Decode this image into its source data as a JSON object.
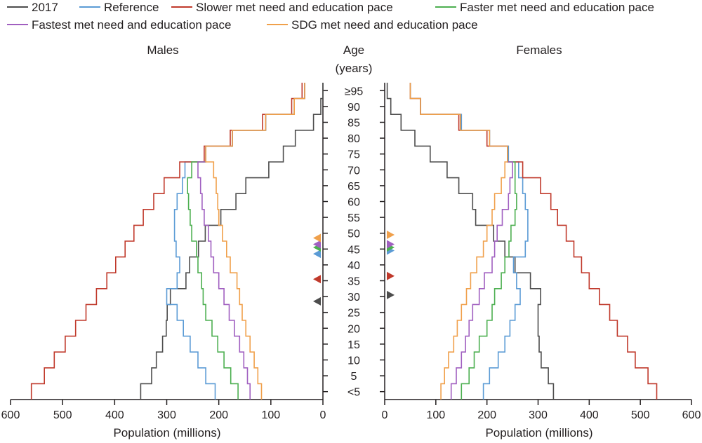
{
  "chart_data": {
    "type": "line",
    "chart_kind": "population-pyramid-step",
    "panels": [
      {
        "key": "males",
        "title": "Males",
        "direction": "left"
      },
      {
        "key": "females",
        "title": "Females",
        "direction": "right"
      }
    ],
    "center_label": [
      "Age",
      "(years)"
    ],
    "age_groups": [
      "<5",
      "5",
      "10",
      "15",
      "20",
      "25",
      "30",
      "35",
      "40",
      "45",
      "50",
      "55",
      "60",
      "65",
      "70",
      "75",
      "80",
      "85",
      "90",
      "≥95"
    ],
    "age_tick_labels": [
      "<5",
      "5",
      "10",
      "15",
      "20",
      "25",
      "30",
      "35",
      "40",
      "45",
      "50",
      "55",
      "60",
      "65",
      "70",
      "75",
      "80",
      "85",
      "90",
      "≥95"
    ],
    "x_ticks": [
      0,
      100,
      200,
      300,
      400,
      500,
      600
    ],
    "xlim": [
      0,
      600
    ],
    "xlabel": "Population (millions)",
    "grid": false,
    "legend_position": "top",
    "series": [
      {
        "name": "2017",
        "color": "#4d4d4d",
        "median_marker": {
          "males": 31,
          "females": 33
        },
        "males": [
          350,
          329,
          320,
          308,
          301,
          299,
          293,
          263,
          256,
          239,
          226,
          196,
          167,
          148,
          104,
          76,
          53,
          18,
          4,
          0
        ],
        "females": [
          330,
          320,
          306,
          302,
          300,
          300,
          305,
          285,
          255,
          235,
          213,
          178,
          172,
          145,
          122,
          89,
          59,
          32,
          12,
          5
        ]
      },
      {
        "name": "Reference",
        "color": "#5b9bd5",
        "median_marker": {
          "males": 46,
          "females": 47
        },
        "males": [
          207,
          225,
          240,
          255,
          268,
          280,
          300,
          280,
          275,
          282,
          285,
          285,
          280,
          270,
          265,
          225,
          174,
          110,
          55,
          35
        ],
        "females": [
          193,
          205,
          222,
          235,
          245,
          255,
          265,
          258,
          252,
          275,
          280,
          280,
          275,
          270,
          262,
          242,
          205,
          150,
          70,
          50
        ]
      },
      {
        "name": "Slower met need and education pace",
        "color": "#c0392b",
        "median_marker": {
          "males": 38,
          "females": 39
        },
        "males": [
          560,
          535,
          516,
          495,
          475,
          455,
          435,
          415,
          398,
          380,
          363,
          345,
          325,
          305,
          275,
          228,
          178,
          116,
          60,
          40
        ],
        "females": [
          532,
          515,
          490,
          475,
          455,
          440,
          420,
          400,
          385,
          370,
          355,
          338,
          325,
          305,
          270,
          240,
          200,
          145,
          70,
          50
        ]
      },
      {
        "name": "Faster met need and education pace",
        "color": "#4caf50",
        "median_marker": {
          "males": 48,
          "females": 48
        },
        "males": [
          163,
          177,
          190,
          202,
          213,
          225,
          230,
          233,
          240,
          243,
          252,
          255,
          258,
          260,
          252,
          225,
          174,
          110,
          55,
          35
        ],
        "females": [
          150,
          165,
          175,
          185,
          200,
          210,
          215,
          228,
          235,
          243,
          247,
          255,
          258,
          255,
          255,
          240,
          205,
          148,
          70,
          50
        ]
      },
      {
        "name": "Fastest met need and education pace",
        "color": "#a05fc0",
        "median_marker": {
          "males": 49,
          "females": 49
        },
        "males": [
          140,
          145,
          152,
          160,
          170,
          180,
          190,
          200,
          210,
          215,
          220,
          228,
          232,
          235,
          240,
          225,
          174,
          110,
          55,
          35
        ],
        "females": [
          130,
          140,
          150,
          158,
          165,
          172,
          185,
          195,
          210,
          215,
          220,
          230,
          242,
          245,
          250,
          240,
          205,
          148,
          70,
          50
        ]
      },
      {
        "name": "SDG met need and education pace",
        "color": "#f0a04b",
        "median_marker": {
          "males": 51,
          "females": 52
        },
        "males": [
          118,
          125,
          132,
          140,
          148,
          155,
          160,
          165,
          178,
          185,
          193,
          200,
          202,
          205,
          210,
          225,
          174,
          110,
          55,
          35
        ],
        "females": [
          110,
          117,
          125,
          135,
          142,
          150,
          160,
          168,
          180,
          193,
          200,
          210,
          215,
          228,
          235,
          240,
          205,
          148,
          70,
          50
        ]
      }
    ]
  }
}
